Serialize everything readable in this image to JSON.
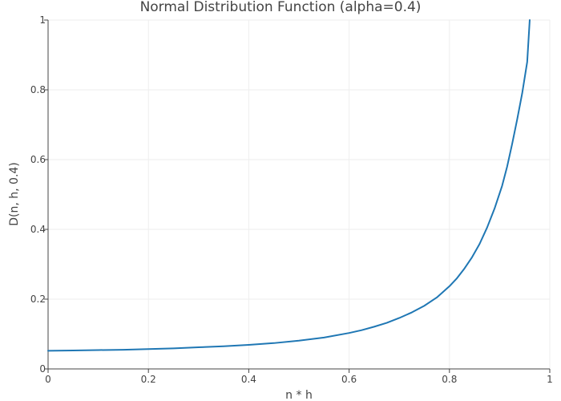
{
  "chart_data": {
    "type": "line",
    "title": "Normal Distribution Function (alpha=0.4)",
    "xlabel": "n * h",
    "ylabel": "D(n, h, 0.4)",
    "xlim": [
      0,
      1
    ],
    "ylim": [
      0,
      1
    ],
    "x_ticks": [
      0,
      0.2,
      0.4,
      0.6,
      0.8,
      1
    ],
    "x_tick_labels": [
      "0",
      "0.2",
      "0.4",
      "0.6",
      "0.8",
      "1"
    ],
    "y_ticks": [
      0,
      0.2,
      0.4,
      0.6,
      0.8,
      1
    ],
    "y_tick_labels": [
      "0",
      "0.2",
      "0.4",
      "0.6",
      "0.8",
      "1"
    ],
    "grid": true,
    "legend": "none",
    "series": [
      {
        "color": "#1f77b4",
        "x": [
          0,
          0.05,
          0.1,
          0.15,
          0.2,
          0.25,
          0.3,
          0.35,
          0.4,
          0.45,
          0.5,
          0.55,
          0.6,
          0.625,
          0.65,
          0.675,
          0.7,
          0.725,
          0.75,
          0.775,
          0.8,
          0.815,
          0.83,
          0.845,
          0.86,
          0.875,
          0.89,
          0.905,
          0.915,
          0.925,
          0.935,
          0.945,
          0.955,
          0.96
        ],
        "y": [
          0.052,
          0.053,
          0.054,
          0.055,
          0.057,
          0.059,
          0.062,
          0.065,
          0.069,
          0.074,
          0.081,
          0.09,
          0.103,
          0.111,
          0.121,
          0.132,
          0.146,
          0.162,
          0.181,
          0.205,
          0.237,
          0.26,
          0.288,
          0.32,
          0.358,
          0.405,
          0.46,
          0.525,
          0.58,
          0.645,
          0.715,
          0.79,
          0.88,
          1.0
        ]
      }
    ]
  }
}
